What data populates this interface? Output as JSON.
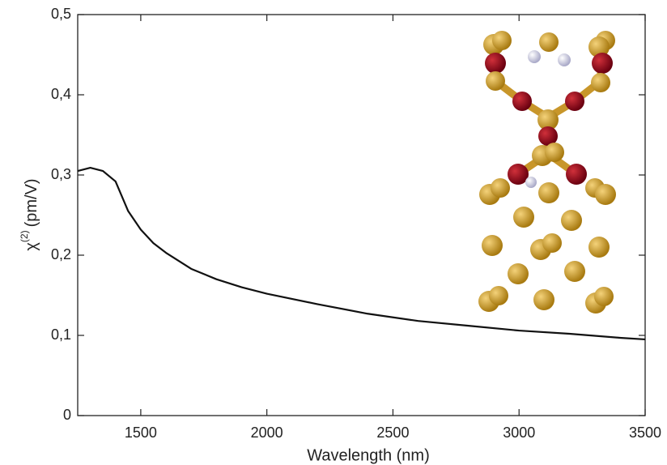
{
  "chart_data": {
    "type": "line",
    "xlabel": "Wavelength (nm)",
    "ylabel": {
      "symbol": "χ",
      "superscript": "(2)",
      "unit": "(pm/V)"
    },
    "x": [
      1250,
      1300,
      1350,
      1400,
      1450,
      1500,
      1550,
      1600,
      1700,
      1800,
      1900,
      2000,
      2200,
      2400,
      2600,
      2800,
      3000,
      3200,
      3400,
      3500
    ],
    "series": [
      {
        "color": "#111111",
        "values": [
          0.305,
          0.309,
          0.305,
          0.292,
          0.255,
          0.232,
          0.215,
          0.203,
          0.183,
          0.17,
          0.16,
          0.152,
          0.139,
          0.127,
          0.118,
          0.112,
          0.106,
          0.102,
          0.097,
          0.095
        ]
      }
    ],
    "xlim": [
      1250,
      3500
    ],
    "xticks": [
      1500,
      2000,
      2500,
      3000,
      3500
    ],
    "ylim": [
      0,
      0.5
    ],
    "yticks": [
      0,
      {
        "value": 0.1,
        "label": "0,1"
      },
      {
        "value": 0.2,
        "label": "0,2"
      },
      {
        "value": 0.3,
        "label": "0,3"
      },
      {
        "value": 0.4,
        "label": "0,4"
      },
      {
        "value": 0.5,
        "label": "0,5"
      }
    ]
  }
}
